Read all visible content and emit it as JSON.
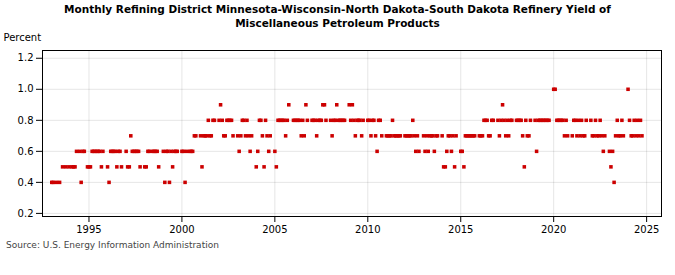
{
  "chart_data": {
    "type": "scatter",
    "title": "Monthly Refining District Minnesota-Wisconsin-North Dakota-South Dakota Refinery Yield of\nMiscellaneous Petroleum Products",
    "ylabel": "Percent",
    "source": "Source: U.S. Energy Information Administration",
    "color": "#cc0000",
    "marker": "square",
    "grid": true,
    "xlim": [
      1992.5,
      2025.8
    ],
    "ylim": [
      0.18,
      1.25
    ],
    "xticks": [
      1995,
      2000,
      2005,
      2010,
      2015,
      2020,
      2025
    ],
    "yticks": [
      0.2,
      0.4,
      0.6,
      0.8,
      {
        "value": 1.0,
        "label": "1.0"
      },
      1.2
    ],
    "x": [
      1993.0,
      1993.08,
      1993.25,
      1993.42,
      1993.58,
      1993.75,
      1993.92,
      1994.08,
      1994.17,
      1994.25,
      1994.33,
      1994.5,
      1994.58,
      1994.67,
      1994.75,
      1994.92,
      1995.0,
      1995.08,
      1995.17,
      1995.25,
      1995.33,
      1995.42,
      1995.5,
      1995.58,
      1995.67,
      1995.75,
      1996.0,
      1996.08,
      1996.17,
      1996.25,
      1996.33,
      1996.42,
      1996.5,
      1996.58,
      1996.67,
      1996.75,
      1997.0,
      1997.08,
      1997.17,
      1997.25,
      1997.33,
      1997.42,
      1997.5,
      1997.58,
      1997.67,
      1997.75,
      1998.0,
      1998.08,
      1998.17,
      1998.25,
      1998.42,
      1998.5,
      1998.58,
      1998.67,
      1998.75,
      1999.0,
      1999.08,
      1999.17,
      1999.25,
      1999.33,
      1999.42,
      1999.5,
      1999.58,
      1999.67,
      1999.75,
      2000.0,
      2000.08,
      2000.17,
      2000.25,
      2000.42,
      2000.5,
      2000.58,
      2000.67,
      2000.75,
      2001.0,
      2001.08,
      2001.17,
      2001.25,
      2001.33,
      2001.42,
      2001.5,
      2001.58,
      2001.67,
      2001.75,
      2002.0,
      2002.08,
      2002.17,
      2002.25,
      2002.33,
      2002.42,
      2002.5,
      2002.58,
      2002.67,
      2002.75,
      2003.0,
      2003.08,
      2003.17,
      2003.25,
      2003.33,
      2003.42,
      2003.5,
      2003.58,
      2003.67,
      2003.75,
      2004.0,
      2004.08,
      2004.17,
      2004.25,
      2004.33,
      2004.42,
      2004.5,
      2004.58,
      2004.67,
      2004.75,
      2005.0,
      2005.08,
      2005.17,
      2005.25,
      2005.33,
      2005.42,
      2005.5,
      2005.58,
      2005.67,
      2005.75,
      2006.0,
      2006.08,
      2006.17,
      2006.25,
      2006.33,
      2006.42,
      2006.5,
      2006.58,
      2006.67,
      2006.75,
      2007.0,
      2007.08,
      2007.17,
      2007.25,
      2007.33,
      2007.42,
      2007.5,
      2007.58,
      2007.67,
      2007.75,
      2008.0,
      2008.08,
      2008.17,
      2008.25,
      2008.33,
      2008.42,
      2008.5,
      2008.58,
      2008.67,
      2008.75,
      2009.0,
      2009.08,
      2009.17,
      2009.25,
      2009.33,
      2009.42,
      2009.5,
      2009.58,
      2009.67,
      2009.75,
      2010.0,
      2010.08,
      2010.17,
      2010.25,
      2010.33,
      2010.42,
      2010.5,
      2010.58,
      2010.67,
      2010.75,
      2011.0,
      2011.08,
      2011.17,
      2011.25,
      2011.33,
      2011.42,
      2011.5,
      2011.58,
      2011.67,
      2011.75,
      2012.0,
      2012.08,
      2012.17,
      2012.25,
      2012.33,
      2012.42,
      2012.5,
      2012.58,
      2012.67,
      2012.75,
      2013.0,
      2013.08,
      2013.17,
      2013.25,
      2013.33,
      2013.42,
      2013.5,
      2013.58,
      2013.67,
      2013.75,
      2014.0,
      2014.08,
      2014.17,
      2014.25,
      2014.33,
      2014.42,
      2014.5,
      2014.58,
      2014.67,
      2014.75,
      2015.0,
      2015.08,
      2015.17,
      2015.25,
      2015.33,
      2015.42,
      2015.5,
      2015.58,
      2015.67,
      2015.75,
      2016.0,
      2016.08,
      2016.17,
      2016.25,
      2016.33,
      2016.42,
      2016.5,
      2016.58,
      2016.67,
      2016.75,
      2017.0,
      2017.08,
      2017.17,
      2017.25,
      2017.33,
      2017.42,
      2017.5,
      2017.58,
      2017.67,
      2017.75,
      2018.0,
      2018.08,
      2018.17,
      2018.25,
      2018.33,
      2018.42,
      2018.5,
      2018.58,
      2018.67,
      2018.75,
      2019.0,
      2019.08,
      2019.17,
      2019.25,
      2019.33,
      2019.42,
      2019.5,
      2019.58,
      2019.67,
      2019.75,
      2020.0,
      2020.08,
      2020.17,
      2020.25,
      2020.33,
      2020.42,
      2020.5,
      2020.58,
      2020.67,
      2020.75,
      2021.0,
      2021.08,
      2021.17,
      2021.25,
      2021.33,
      2021.42,
      2021.5,
      2021.58,
      2021.67,
      2021.75,
      2022.0,
      2022.08,
      2022.17,
      2022.25,
      2022.33,
      2022.42,
      2022.5,
      2022.58,
      2022.67,
      2022.75,
      2023.0,
      2023.08,
      2023.17,
      2023.25,
      2023.33,
      2023.42,
      2023.5,
      2023.58,
      2023.67,
      2023.75,
      2024.0,
      2024.08,
      2024.17,
      2024.25,
      2024.33,
      2024.42,
      2024.5,
      2024.58,
      2024.67,
      2024.75
    ],
    "values": [
      0.4,
      0.4,
      0.4,
      0.4,
      0.5,
      0.5,
      0.5,
      0.5,
      0.5,
      0.5,
      0.6,
      0.6,
      0.4,
      0.6,
      0.6,
      0.5,
      0.5,
      0.5,
      0.6,
      0.6,
      0.6,
      0.6,
      0.6,
      0.6,
      0.5,
      0.6,
      0.5,
      0.4,
      0.6,
      0.6,
      0.6,
      0.6,
      0.5,
      0.6,
      0.6,
      0.5,
      0.6,
      0.5,
      0.5,
      0.7,
      0.6,
      0.6,
      0.6,
      0.6,
      0.6,
      0.5,
      0.5,
      0.5,
      0.6,
      0.6,
      0.6,
      0.6,
      0.6,
      0.6,
      0.5,
      0.6,
      0.4,
      0.6,
      0.6,
      0.4,
      0.6,
      0.5,
      0.6,
      0.6,
      0.6,
      0.6,
      0.6,
      0.4,
      0.6,
      0.6,
      0.6,
      0.6,
      0.7,
      0.7,
      0.7,
      0.5,
      0.7,
      0.7,
      0.7,
      0.8,
      0.7,
      0.7,
      0.8,
      0.8,
      0.8,
      0.9,
      0.8,
      0.7,
      0.7,
      0.8,
      0.8,
      0.8,
      0.8,
      0.7,
      0.7,
      0.6,
      0.7,
      0.8,
      0.8,
      0.7,
      0.8,
      0.7,
      0.6,
      0.7,
      0.5,
      0.6,
      0.8,
      0.8,
      0.7,
      0.5,
      0.8,
      0.7,
      0.6,
      0.7,
      0.6,
      0.5,
      0.8,
      0.8,
      0.8,
      0.8,
      0.8,
      0.7,
      0.8,
      0.9,
      0.8,
      0.8,
      0.8,
      0.8,
      0.8,
      0.7,
      0.8,
      0.7,
      0.9,
      0.8,
      0.8,
      0.8,
      0.8,
      0.7,
      0.8,
      0.8,
      0.8,
      0.9,
      0.9,
      0.8,
      0.8,
      0.7,
      0.8,
      0.8,
      0.9,
      0.8,
      0.8,
      0.8,
      0.8,
      0.8,
      0.9,
      0.8,
      0.9,
      0.8,
      0.7,
      0.8,
      0.8,
      0.8,
      0.7,
      0.8,
      0.8,
      0.8,
      0.7,
      0.8,
      0.8,
      0.7,
      0.6,
      0.8,
      0.8,
      0.7,
      0.7,
      0.7,
      0.7,
      0.7,
      0.8,
      0.7,
      0.7,
      0.7,
      0.7,
      0.7,
      0.7,
      0.7,
      0.7,
      0.7,
      0.7,
      0.8,
      0.7,
      0.6,
      0.7,
      0.6,
      0.7,
      0.6,
      0.7,
      0.6,
      0.7,
      0.7,
      0.7,
      0.6,
      0.7,
      0.7,
      0.7,
      0.5,
      0.5,
      0.6,
      0.7,
      0.7,
      0.6,
      0.7,
      0.5,
      0.7,
      0.6,
      0.6,
      0.5,
      0.7,
      0.7,
      0.7,
      0.7,
      0.7,
      0.7,
      0.7,
      0.7,
      0.7,
      0.7,
      0.8,
      0.8,
      0.8,
      0.7,
      0.7,
      0.8,
      0.8,
      0.8,
      0.7,
      0.8,
      0.9,
      0.8,
      0.7,
      0.8,
      0.7,
      0.8,
      0.8,
      0.8,
      0.8,
      0.8,
      0.8,
      0.7,
      0.5,
      0.8,
      0.7,
      0.7,
      0.8,
      0.8,
      0.6,
      0.8,
      0.8,
      0.8,
      0.8,
      0.8,
      0.8,
      0.8,
      0.8,
      1.0,
      1.0,
      0.8,
      0.8,
      0.8,
      0.8,
      0.8,
      0.7,
      0.8,
      0.7,
      0.7,
      0.8,
      0.8,
      0.7,
      0.8,
      0.7,
      0.8,
      0.7,
      0.7,
      0.8,
      0.8,
      0.7,
      0.7,
      0.8,
      0.7,
      0.7,
      0.8,
      0.7,
      0.6,
      0.7,
      0.6,
      0.5,
      0.6,
      0.4,
      0.7,
      0.8,
      0.7,
      0.7,
      0.8,
      0.7,
      1.0,
      0.8,
      0.7,
      0.7,
      0.8,
      0.7,
      0.8,
      0.7,
      0.8,
      0.7
    ]
  }
}
